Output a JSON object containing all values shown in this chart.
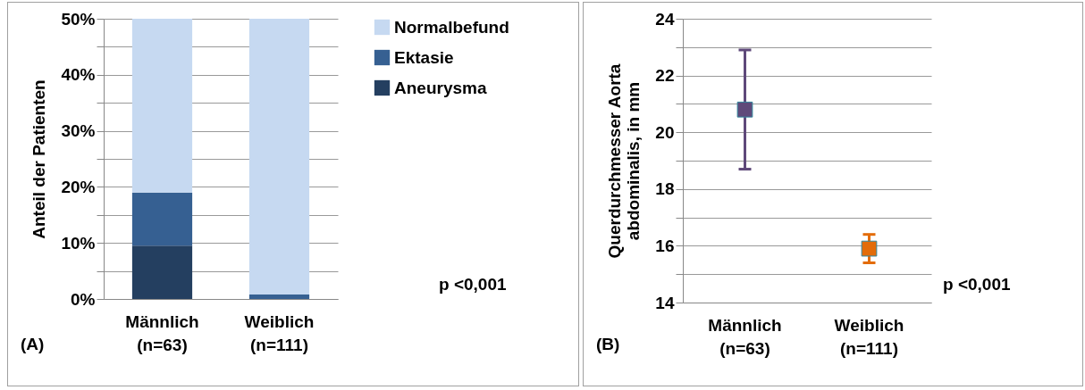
{
  "chart_data": [
    {
      "type": "bar",
      "stacked": true,
      "categories": [
        "Männlich (n=63)",
        "Weiblich (n=111)"
      ],
      "series": [
        {
          "name": "Aneurysma",
          "color": "#243f60",
          "values": [
            9.5,
            0
          ]
        },
        {
          "name": "Ektasie",
          "color": "#366092",
          "values": [
            9.5,
            0.8
          ]
        },
        {
          "name": "Normalbefund",
          "color": "#c6d9f1",
          "values": [
            31,
            49.2
          ]
        }
      ],
      "ylim": [
        0,
        50
      ],
      "yticks": [
        {
          "value": 0,
          "label": "0%"
        },
        {
          "value": 5,
          "label": null
        },
        {
          "value": 10,
          "label": "10%"
        },
        {
          "value": 15,
          "label": null
        },
        {
          "value": 20,
          "label": "20%"
        },
        {
          "value": 25,
          "label": null
        },
        {
          "value": 30,
          "label": "30%"
        },
        {
          "value": 35,
          "label": null
        },
        {
          "value": 40,
          "label": "40%"
        },
        {
          "value": 45,
          "label": null
        },
        {
          "value": 50,
          "label": "50%"
        }
      ],
      "ylabel": "Anteil der Patienten",
      "grid": "y",
      "legend": "right",
      "annotations": [
        "(A)",
        "p <0,001"
      ]
    },
    {
      "type": "scatter",
      "categories": [
        "Männlich (n=63)",
        "Weiblich (n=111)"
      ],
      "values": [
        20.8,
        15.9
      ],
      "colors": [
        "#5f497a",
        "#e36c09"
      ],
      "errors": [
        [
          18.7,
          22.9
        ],
        [
          15.4,
          16.4
        ]
      ],
      "ylim": [
        14,
        24
      ],
      "yticks": [
        14,
        {
          "value": 15,
          "label": null
        },
        16,
        {
          "value": 17,
          "label": null
        },
        18,
        {
          "value": 19,
          "label": null
        },
        20,
        {
          "value": 21,
          "label": null
        },
        22,
        {
          "value": 23,
          "label": null
        },
        24
      ],
      "ylabel": "Querdurchmesser Aorta abdominalis, in mm",
      "marker": "square",
      "grid": "y",
      "annotations": [
        "(B)",
        "p <0,001"
      ]
    }
  ]
}
